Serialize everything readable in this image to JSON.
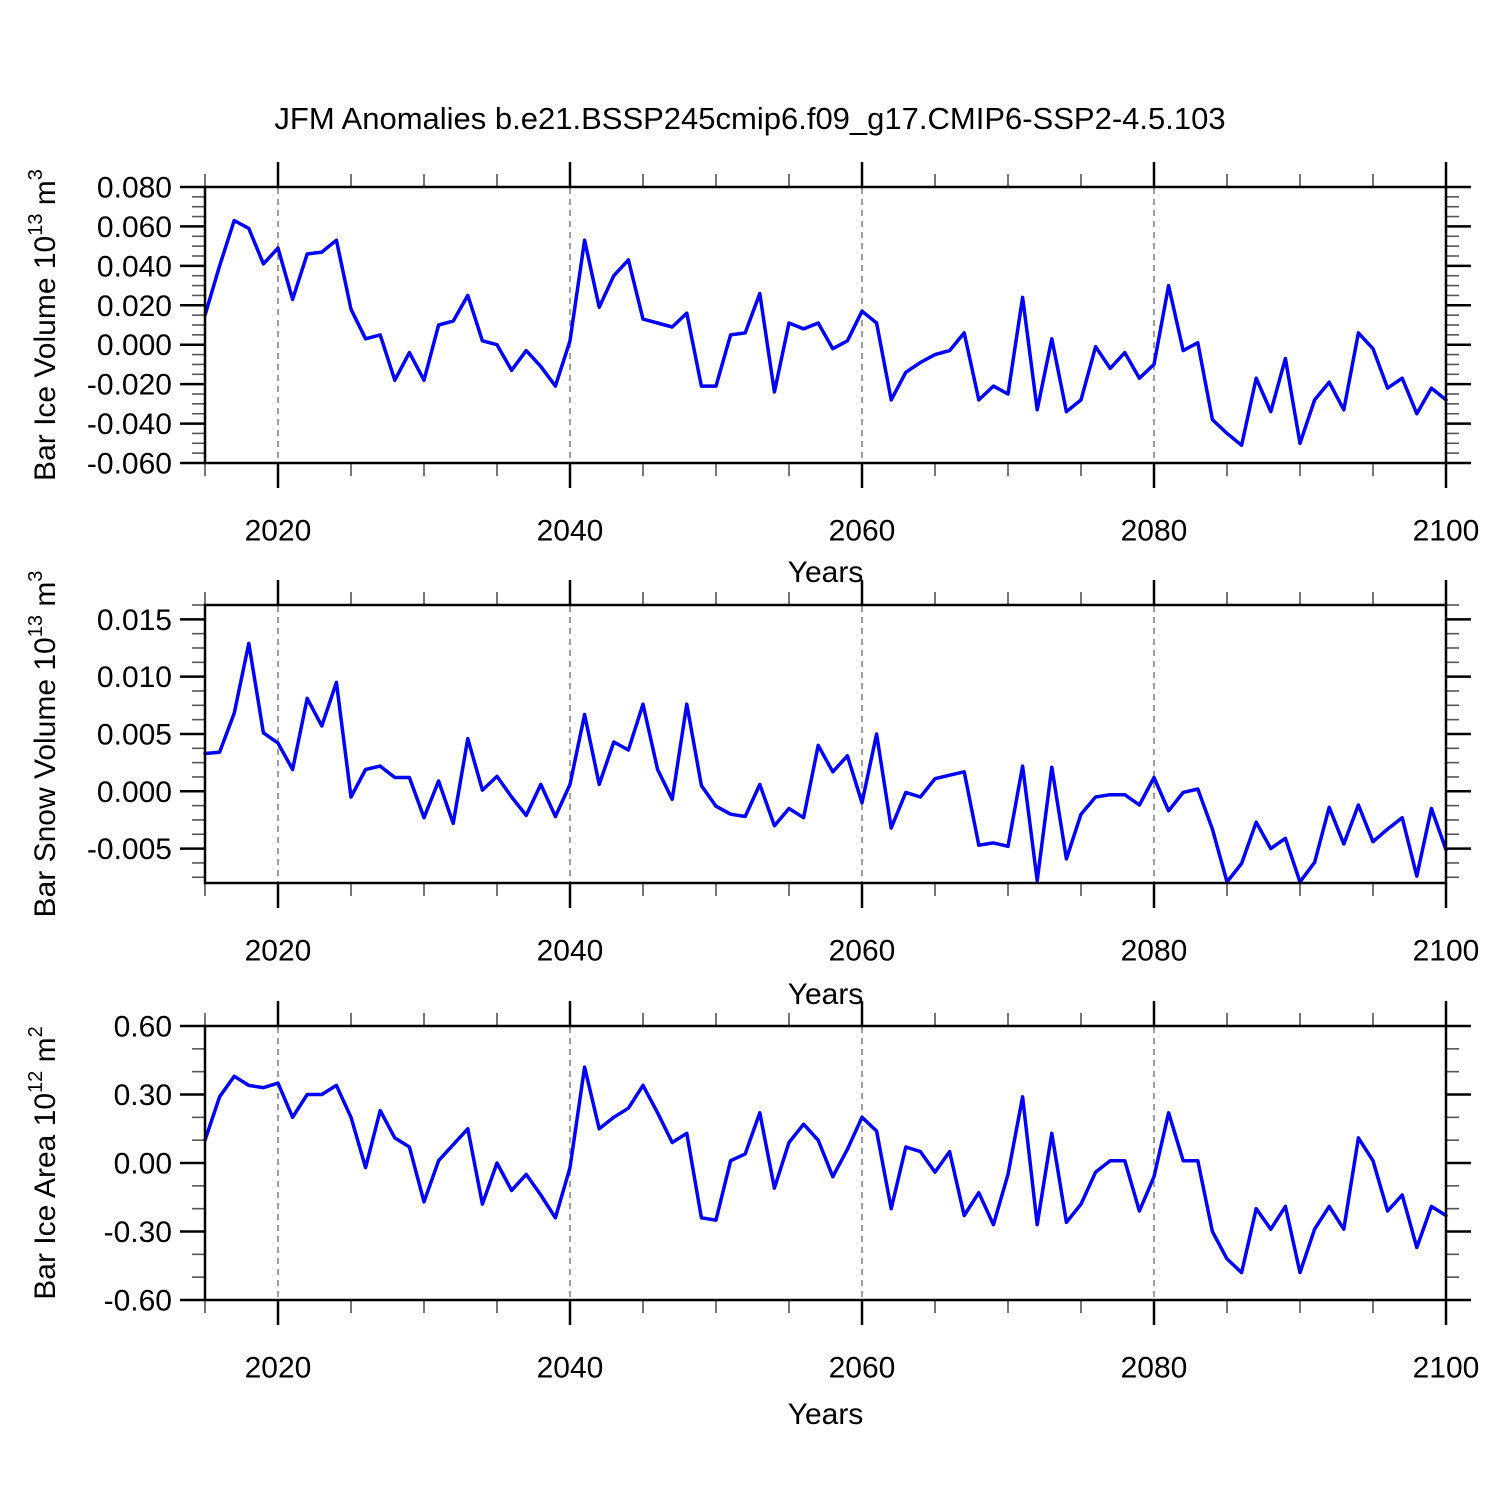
{
  "title": "JFM Anomalies b.e21.BSSP245cmip6.f09_g17.CMIP6-SSP2-4.5.103",
  "chart_data": [
    {
      "type": "line",
      "id": "bar-ice-volume",
      "title": "JFM Anomalies b.e21.BSSP245cmip6.f09_g17.CMIP6-SSP2-4.5.103",
      "xlabel": "Years",
      "ylabel": "Bar Ice Volume 10^13 m^3",
      "ylabel_parts": {
        "base": "Bar Ice Volume 10",
        "exp": "13",
        "unit": " m",
        "unit_exp": "3"
      },
      "x_start": 2015,
      "x_end": 2100,
      "x_step": 1,
      "xlim": [
        2015,
        2100
      ],
      "xticks": [
        2020,
        2040,
        2060,
        2080,
        2100
      ],
      "xtick_labels": [
        "2020",
        "2040",
        "2060",
        "2080",
        "2100"
      ],
      "minor_x_step": 5,
      "grid_x": [
        2020,
        2040,
        2060,
        2080
      ],
      "ylim": [
        -0.06,
        0.08
      ],
      "ytick_values": [
        0.08,
        0.06,
        0.04,
        0.02,
        0.0,
        -0.02,
        -0.04,
        -0.06
      ],
      "ytick_labels": [
        "0.080",
        "0.060",
        "0.040",
        "0.020",
        "0.000",
        "-0.020",
        "-0.040",
        "-0.060"
      ],
      "minor_y_step": 0.005,
      "line_color": "#0000ff",
      "grid_on": true,
      "legend": "none",
      "values": [
        0.015,
        0.04,
        0.063,
        0.059,
        0.041,
        0.049,
        0.023,
        0.046,
        0.047,
        0.053,
        0.018,
        0.003,
        0.005,
        -0.018,
        -0.004,
        -0.018,
        0.01,
        0.012,
        0.025,
        0.002,
        0.0,
        -0.013,
        -0.003,
        -0.011,
        -0.021,
        0.002,
        0.053,
        0.019,
        0.035,
        0.043,
        0.013,
        0.011,
        0.009,
        0.016,
        -0.021,
        -0.021,
        0.005,
        0.006,
        0.026,
        -0.024,
        0.011,
        0.008,
        0.011,
        -0.002,
        0.002,
        0.017,
        0.011,
        -0.028,
        -0.014,
        -0.009,
        -0.005,
        -0.003,
        0.006,
        -0.028,
        -0.021,
        -0.025,
        0.024,
        -0.033,
        0.003,
        -0.034,
        -0.028,
        -0.001,
        -0.012,
        -0.004,
        -0.017,
        -0.01,
        0.03,
        -0.003,
        0.001,
        -0.038,
        -0.045,
        -0.051,
        -0.017,
        -0.034,
        -0.007,
        -0.05,
        -0.028,
        -0.019,
        -0.033,
        0.006,
        -0.002,
        -0.022,
        -0.017,
        -0.035,
        -0.022,
        -0.028
      ]
    },
    {
      "type": "line",
      "id": "bar-snow-volume",
      "xlabel": "Years",
      "ylabel": "Bar Snow Volume 10^13 m^3",
      "ylabel_parts": {
        "base": "Bar Snow Volume 10",
        "exp": "13",
        "unit": " m",
        "unit_exp": "3"
      },
      "x_start": 2015,
      "x_end": 2100,
      "x_step": 1,
      "xlim": [
        2015,
        2100
      ],
      "xticks": [
        2020,
        2040,
        2060,
        2080,
        2100
      ],
      "xtick_labels": [
        "2020",
        "2040",
        "2060",
        "2080",
        "2100"
      ],
      "minor_x_step": 5,
      "grid_x": [
        2020,
        2040,
        2060,
        2080
      ],
      "ylim": [
        -0.008,
        0.01625
      ],
      "ytick_values": [
        0.015,
        0.01,
        0.005,
        0.0,
        -0.005
      ],
      "ytick_labels": [
        "0.015",
        "0.010",
        "0.005",
        "0.000",
        "-0.005"
      ],
      "minor_y_step": 0.00125,
      "line_color": "#0000ff",
      "grid_on": true,
      "legend": "none",
      "values": [
        0.0033,
        0.0034,
        0.0068,
        0.0129,
        0.0051,
        0.0042,
        0.0019,
        0.0081,
        0.0057,
        0.0095,
        -0.0005,
        0.0019,
        0.0022,
        0.0012,
        0.0012,
        -0.0023,
        0.0009,
        -0.0028,
        0.0046,
        0.0001,
        0.0013,
        -0.0005,
        -0.0021,
        0.0006,
        -0.0022,
        0.0006,
        0.0067,
        0.0006,
        0.0043,
        0.0036,
        0.0076,
        0.0019,
        -0.0007,
        0.0076,
        0.0005,
        -0.0013,
        -0.002,
        -0.0022,
        0.0006,
        -0.003,
        -0.0015,
        -0.0023,
        0.004,
        0.0017,
        0.0031,
        -0.001,
        0.005,
        -0.0032,
        -0.0001,
        -0.0005,
        0.0011,
        0.0014,
        0.0017,
        -0.0047,
        -0.0045,
        -0.0048,
        0.0022,
        -0.0078,
        0.0021,
        -0.0059,
        -0.002,
        -0.0005,
        -0.0003,
        -0.0003,
        -0.0012,
        0.0012,
        -0.0017,
        -0.0001,
        0.0002,
        -0.0033,
        -0.0079,
        -0.0063,
        -0.0027,
        -0.005,
        -0.0041,
        -0.0079,
        -0.0062,
        -0.0014,
        -0.0046,
        -0.0012,
        -0.0044,
        -0.0033,
        -0.0023,
        -0.0074,
        -0.0015,
        -0.0051
      ]
    },
    {
      "type": "line",
      "id": "bar-ice-area",
      "xlabel": "Years",
      "ylabel": "Bar Ice Area 10^12 m^2",
      "ylabel_parts": {
        "base": "Bar Ice Area 10",
        "exp": "12",
        "unit": " m",
        "unit_exp": "2"
      },
      "x_start": 2015,
      "x_end": 2100,
      "x_step": 1,
      "xlim": [
        2015,
        2100
      ],
      "xticks": [
        2020,
        2040,
        2060,
        2080,
        2100
      ],
      "xtick_labels": [
        "2020",
        "2040",
        "2060",
        "2080",
        "2100"
      ],
      "minor_x_step": 5,
      "grid_x": [
        2020,
        2040,
        2060,
        2080
      ],
      "ylim": [
        -0.6,
        0.6
      ],
      "ytick_values": [
        0.6,
        0.3,
        0.0,
        -0.3,
        -0.6
      ],
      "ytick_labels": [
        "0.60",
        "0.30",
        "0.00",
        "-0.30",
        "-0.60"
      ],
      "minor_y_step": 0.1,
      "line_color": "#0000ff",
      "grid_on": true,
      "legend": "none",
      "values": [
        0.1,
        0.29,
        0.38,
        0.34,
        0.33,
        0.35,
        0.2,
        0.3,
        0.3,
        0.34,
        0.2,
        -0.02,
        0.23,
        0.11,
        0.07,
        -0.17,
        0.01,
        0.08,
        0.15,
        -0.18,
        0.0,
        -0.12,
        -0.05,
        -0.14,
        -0.24,
        -0.02,
        0.42,
        0.15,
        0.2,
        0.24,
        0.34,
        0.22,
        0.09,
        0.13,
        -0.24,
        -0.25,
        0.01,
        0.04,
        0.22,
        -0.11,
        0.09,
        0.17,
        0.1,
        -0.06,
        0.06,
        0.2,
        0.14,
        -0.2,
        0.07,
        0.05,
        -0.04,
        0.05,
        -0.23,
        -0.13,
        -0.27,
        -0.05,
        0.29,
        -0.27,
        0.13,
        -0.26,
        -0.18,
        -0.04,
        0.01,
        0.01,
        -0.21,
        -0.06,
        0.22,
        0.01,
        0.01,
        -0.3,
        -0.42,
        -0.48,
        -0.2,
        -0.29,
        -0.19,
        -0.48,
        -0.29,
        -0.19,
        -0.29,
        0.11,
        0.01,
        -0.21,
        -0.14,
        -0.37,
        -0.19,
        -0.23
      ]
    }
  ]
}
